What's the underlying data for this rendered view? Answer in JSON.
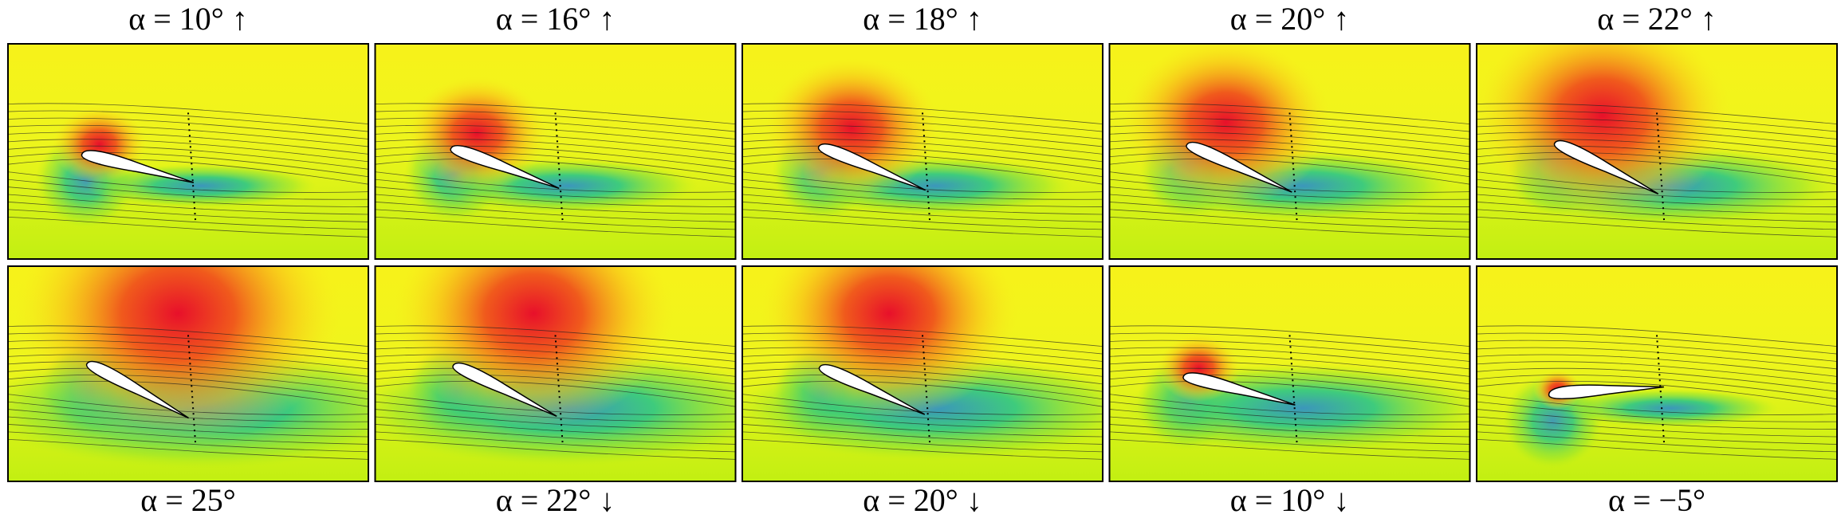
{
  "rows": [
    {
      "panels": [
        {
          "label": "α = 10° ↑"
        },
        {
          "label": "α = 16° ↑"
        },
        {
          "label": "α = 18° ↑"
        },
        {
          "label": "α = 20° ↑"
        },
        {
          "label": "α = 22° ↑"
        }
      ]
    },
    {
      "panels": [
        {
          "label": "α = 25°"
        },
        {
          "label": "α = 22° ↓"
        },
        {
          "label": "α = 20° ↓"
        },
        {
          "label": "α = 10° ↓"
        },
        {
          "label": "α = −5°"
        }
      ]
    }
  ]
}
